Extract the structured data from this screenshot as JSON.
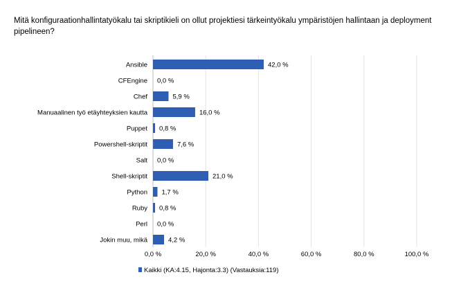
{
  "question": "Mitä konfiguraationhallintatyökalu tai skriptikieli on ollut projektiesi tärkeintyökalu ympäristöjen hallintaan ja deployment pipelineen?",
  "chart_data": {
    "type": "bar",
    "orientation": "horizontal",
    "categories": [
      "Ansible",
      "CFEngine",
      "Chef",
      "Manuaalinen työ etäyhteyksien kautta",
      "Puppet",
      "Powershell-skriptit",
      "Salt",
      "Shell-skriptit",
      "Python",
      "Ruby",
      "Perl",
      "Jokin muu, mikä"
    ],
    "series": [
      {
        "name": "Kaikki (KA:4.15, Hajonta:3.3) (Vastauksia:119)",
        "values": [
          42.0,
          0.0,
          5.9,
          16.0,
          0.8,
          7.6,
          0.0,
          21.0,
          1.7,
          0.8,
          0.0,
          4.2
        ],
        "value_labels": [
          "42,0 %",
          "0,0 %",
          "5,9 %",
          "16,0 %",
          "0,8 %",
          "7,6 %",
          "0,0 %",
          "21,0 %",
          "1,7 %",
          "0,8 %",
          "0,0 %",
          "4,2 %"
        ],
        "color": "#2f5eb5"
      }
    ],
    "x_ticks": [
      0,
      20,
      40,
      60,
      80,
      100
    ],
    "x_tick_labels": [
      "0,0 %",
      "20,0 %",
      "40,0 %",
      "60,0 %",
      "80,0 %",
      "100,0 %"
    ],
    "xlim": [
      0,
      100
    ],
    "grid": true,
    "legend_position": "bottom",
    "gridline_color": "#e3e3e3"
  }
}
